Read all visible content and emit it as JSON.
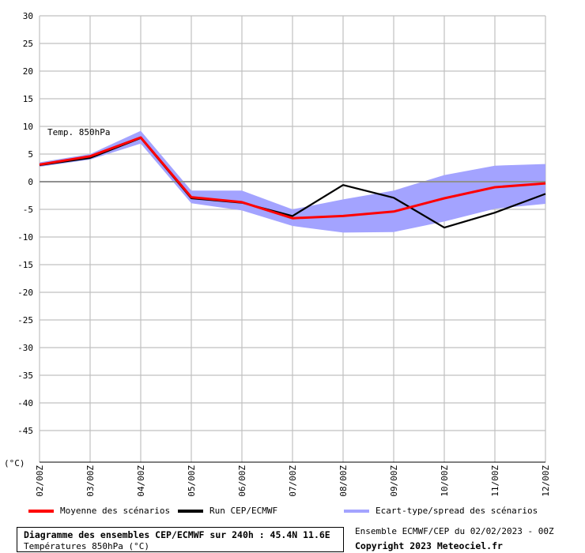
{
  "chart_data": {
    "type": "line",
    "annotation": "Temp. 850hPa",
    "y_unit_label": "(°C)",
    "ylim": [
      -50,
      30
    ],
    "yticks": [
      30,
      25,
      20,
      15,
      10,
      5,
      0,
      -5,
      -10,
      -15,
      -20,
      -25,
      -30,
      -35,
      -40,
      -45
    ],
    "x": [
      "02/00Z",
      "03/00Z",
      "04/00Z",
      "05/00Z",
      "06/00Z",
      "07/00Z",
      "08/00Z",
      "09/00Z",
      "10/00Z",
      "11/00Z",
      "12/00Z"
    ],
    "grid": true,
    "legend_position": "bottom",
    "series": [
      {
        "name": "Moyenne des scénarios",
        "kind": "line",
        "color": "#ff0000",
        "values": [
          3.1,
          4.6,
          8.0,
          -2.8,
          -3.7,
          -6.6,
          -6.2,
          -5.4,
          -3.0,
          -1.0,
          -0.3
        ]
      },
      {
        "name": "Run CEP/ECMWF",
        "kind": "line",
        "color": "#000000",
        "values": [
          3.0,
          4.3,
          7.9,
          -3.0,
          -3.8,
          -6.2,
          -0.6,
          -2.9,
          -8.3,
          -5.6,
          -2.2
        ]
      },
      {
        "name": "Ecart-type/spread des scénarios",
        "kind": "band",
        "color": "#a3a3ff",
        "upper": [
          3.5,
          5.0,
          9.2,
          -1.6,
          -1.6,
          -5.0,
          -3.2,
          -1.6,
          1.2,
          2.9,
          3.2
        ],
        "lower": [
          2.7,
          4.0,
          6.9,
          -3.9,
          -5.2,
          -8.0,
          -9.2,
          -9.1,
          -7.2,
          -4.9,
          -4.0
        ]
      }
    ]
  },
  "legend": {
    "mean": "Moyenne des scénarios",
    "run": "Run CEP/ECMWF",
    "spread": "Ecart-type/spread des scénarios"
  },
  "caption": {
    "title": "Diagramme des ensembles CEP/ECMWF sur 240h : 45.4N 11.6E",
    "subtitle": "Températures 850hPa (°C)"
  },
  "run_info": "Ensemble ECMWF/CEP du 02/02/2023 - 00Z",
  "copyright": "Copyright 2023 Meteociel.fr",
  "colors": {
    "mean": "#ff0000",
    "run": "#000000",
    "spread": "#a3a3ff",
    "grid": "#c0c0c0",
    "zero_line": "#909090"
  }
}
